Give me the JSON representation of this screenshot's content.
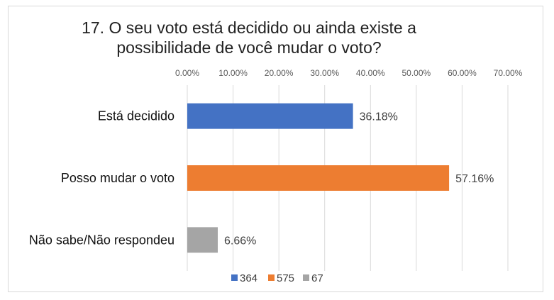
{
  "chart_data": {
    "type": "bar",
    "orientation": "horizontal",
    "title": "17. O seu voto está decidido ou ainda existe a possibilidade de você mudar o voto?",
    "title_lines": [
      "17. O seu voto está decidido ou ainda existe a",
      "possibilidade de você mudar o voto?"
    ],
    "categories": [
      "Está decidido",
      "Posso mudar o voto",
      "Não sabe/Não respondeu"
    ],
    "values": [
      36.18,
      57.16,
      6.66
    ],
    "data_labels": [
      "36.18%",
      "57.16%",
      "6.66%"
    ],
    "colors": [
      "#4472c4",
      "#ed7d31",
      "#a5a5a5"
    ],
    "xlim": [
      0,
      70
    ],
    "xticks": [
      0,
      10,
      20,
      30,
      40,
      50,
      60,
      70
    ],
    "xtick_labels": [
      "0.00%",
      "10.00%",
      "20.00%",
      "30.00%",
      "40.00%",
      "50.00%",
      "60.00%",
      "70.00%"
    ],
    "xaxis_position": "top",
    "gridlines": "vertical",
    "legend": {
      "position": "bottom",
      "entries": [
        {
          "label": "364",
          "color": "#4472c4"
        },
        {
          "label": "575",
          "color": "#ed7d31"
        },
        {
          "label": "67",
          "color": "#a5a5a5"
        }
      ]
    }
  }
}
